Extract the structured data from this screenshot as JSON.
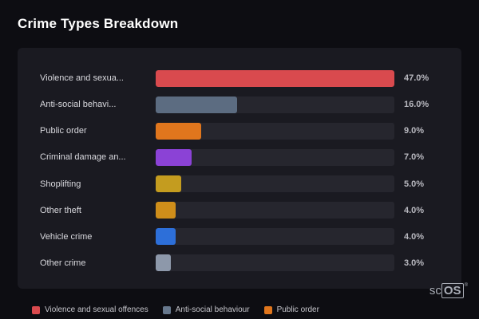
{
  "title": "Crime Types Breakdown",
  "chart_data": {
    "type": "bar",
    "orientation": "horizontal",
    "title": "Crime Types Breakdown",
    "xlabel": "",
    "ylabel": "",
    "scale_max": 47.0,
    "grid": false,
    "legend_position": "bottom",
    "categories": [
      "Violence and sexua...",
      "Anti-social behavi...",
      "Public order",
      "Criminal damage an...",
      "Shoplifting",
      "Other theft",
      "Vehicle crime",
      "Other crime"
    ],
    "values": [
      47.0,
      16.0,
      9.0,
      7.0,
      5.0,
      4.0,
      4.0,
      3.0
    ],
    "rows": [
      {
        "label": "Violence and sexua...",
        "value": 47.0,
        "value_label": "47.0%",
        "color": "#d94a4e"
      },
      {
        "label": "Anti-social behavi...",
        "value": 16.0,
        "value_label": "16.0%",
        "color": "#5c6c81"
      },
      {
        "label": "Public order",
        "value": 9.0,
        "value_label": "9.0%",
        "color": "#e0761d"
      },
      {
        "label": "Criminal damage an...",
        "value": 7.0,
        "value_label": "7.0%",
        "color": "#8b42d6"
      },
      {
        "label": "Shoplifting",
        "value": 5.0,
        "value_label": "5.0%",
        "color": "#c49c1f"
      },
      {
        "label": "Other theft",
        "value": 4.0,
        "value_label": "4.0%",
        "color": "#cf8e1a"
      },
      {
        "label": "Vehicle crime",
        "value": 4.0,
        "value_label": "4.0%",
        "color": "#2d6fd9"
      },
      {
        "label": "Other crime",
        "value": 3.0,
        "value_label": "3.0%",
        "color": "#8d98aa"
      }
    ]
  },
  "legend": [
    {
      "label": "Violence and sexual offences",
      "color": "#d94a4e"
    },
    {
      "label": "Anti-social behaviour",
      "color": "#67788d"
    },
    {
      "label": "Public order",
      "color": "#e0761d"
    }
  ],
  "watermark": {
    "prefix": "sc",
    "boxed": "OS",
    "reg": "®"
  },
  "colors": {
    "background": "#0d0d12",
    "panel": "#1a1a21",
    "track": "#26262e",
    "value_text": "#b9b9c0",
    "label_text": "#d9d9de"
  }
}
